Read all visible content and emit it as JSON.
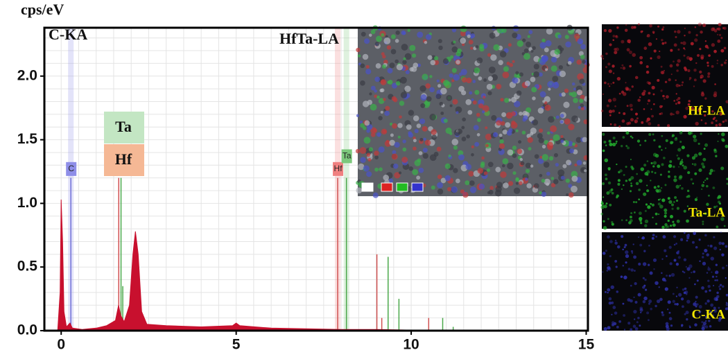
{
  "chart_data": {
    "type": "spectrum",
    "y_label": "cps/eV",
    "x": [
      -0.1,
      -0.03,
      0,
      0.04,
      0.08,
      0.15,
      0.25,
      0.32,
      0.6,
      1.0,
      1.3,
      1.55,
      1.64,
      1.7,
      1.8,
      1.95,
      2.05,
      2.12,
      2.2,
      2.3,
      2.45,
      3,
      4,
      4.9,
      5,
      5.1,
      6,
      7,
      8,
      9,
      10,
      11,
      12,
      15
    ],
    "values": [
      0,
      0.3,
      1.03,
      0.7,
      0.15,
      0.03,
      0.06,
      0.02,
      0.01,
      0.02,
      0.04,
      0.08,
      0.2,
      0.12,
      0.07,
      0.2,
      0.6,
      0.78,
      0.6,
      0.15,
      0.05,
      0.04,
      0.03,
      0.04,
      0.06,
      0.04,
      0.02,
      0.015,
      0.01,
      0.01,
      0.005,
      0.005,
      0.003,
      0.003
    ],
    "color": "#c8102e",
    "lines": [
      {
        "x": 0.277,
        "height": 1.2,
        "color": "#6f6fd8"
      },
      {
        "x": 1.645,
        "height": 1.2,
        "color": "#d05050"
      },
      {
        "x": 1.71,
        "height": 1.2,
        "color": "#4aa84a"
      },
      {
        "x": 1.76,
        "height": 0.35,
        "color": "#4aa84a"
      },
      {
        "x": 7.9,
        "height": 1.2,
        "color": "#d05050"
      },
      {
        "x": 8.15,
        "height": 1.2,
        "color": "#4aa84a"
      },
      {
        "x": 9.02,
        "height": 0.6,
        "color": "#d05050"
      },
      {
        "x": 9.16,
        "height": 0.1,
        "color": "#d05050"
      },
      {
        "x": 9.34,
        "height": 0.58,
        "color": "#4aa84a"
      },
      {
        "x": 9.65,
        "height": 0.25,
        "color": "#4aa84a"
      },
      {
        "x": 10.5,
        "height": 0.1,
        "color": "#d05050"
      },
      {
        "x": 10.9,
        "height": 0.1,
        "color": "#4aa84a"
      },
      {
        "x": 11.2,
        "height": 0.03,
        "color": "#4aa84a"
      }
    ],
    "line_labels": [
      {
        "text": "C",
        "x": 0.277,
        "y": 1.27,
        "color": "#8e8ee8"
      },
      {
        "text": "Hf",
        "x": 7.9,
        "y": 1.27,
        "color": "#f08080"
      },
      {
        "text": "Ta",
        "x": 8.15,
        "y": 1.37,
        "color": "#7cc87c"
      }
    ],
    "annotations": [
      "C-KA",
      "HfTa-LA",
      "Ta",
      "Hf"
    ],
    "panels": [
      "Hf-LA",
      "Ta-LA",
      "C-KA"
    ],
    "xlim": [
      -0.48,
      15.05
    ],
    "ylim": [
      0,
      2.38
    ],
    "xticks": [
      0,
      5,
      10,
      15
    ],
    "yticks": [
      {
        "value": 0,
        "label": "0.0"
      },
      0.5,
      {
        "value": 1,
        "label": "1.0"
      },
      1.5,
      {
        "value": 2,
        "label": "2.0"
      }
    ],
    "grid": true
  }
}
